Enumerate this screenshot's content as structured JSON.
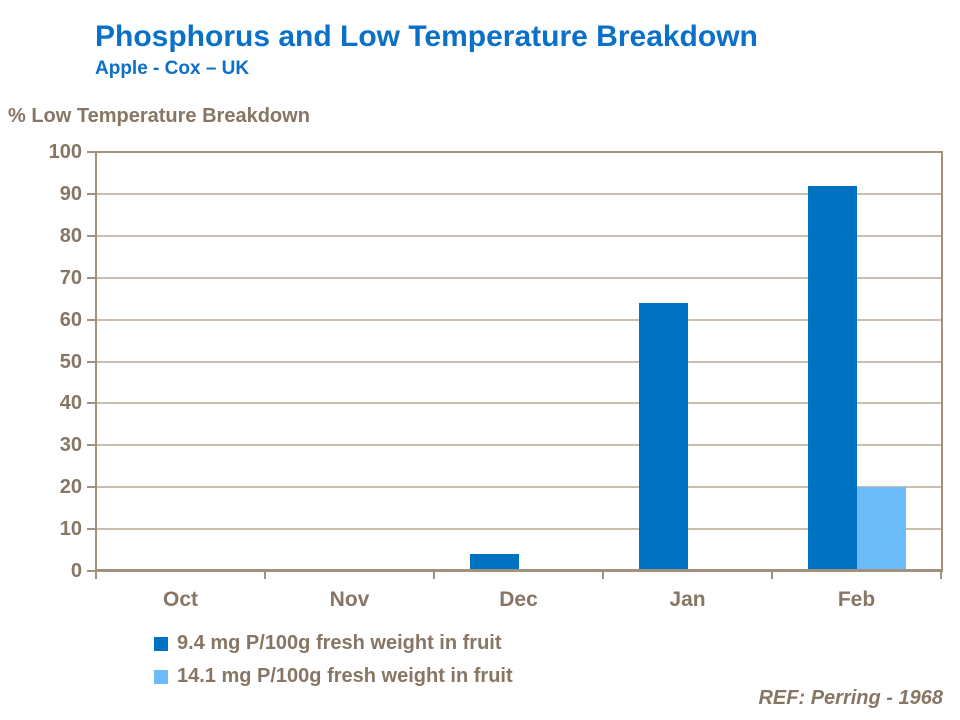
{
  "chart_data": {
    "type": "bar",
    "title": "Phosphorus and Low Temperature Breakdown",
    "subtitle": "Apple - Cox – UK",
    "axis_title": "% Low Temperature Breakdown",
    "categories": [
      "Oct",
      "Nov",
      "Dec",
      "Jan",
      "Feb"
    ],
    "series": [
      {
        "name": "9.4 mg P/100g fresh weight in fruit",
        "color": "#0072c2",
        "values": [
          0,
          0,
          4,
          64,
          92
        ]
      },
      {
        "name": "14.1 mg P/100g fresh weight in fruit",
        "color": "#6cbcfa",
        "values": [
          0,
          0,
          0,
          0,
          20
        ]
      }
    ],
    "ylim": [
      0,
      100
    ],
    "yticks": [
      0,
      10,
      20,
      30,
      40,
      50,
      60,
      70,
      80,
      90,
      100
    ],
    "grid": "horizontal",
    "legend_position": "bottom-left"
  },
  "footnote": "REF: Perring - 1968",
  "colors": {
    "title_blue": "#0a70c8",
    "text_brown": "#877663",
    "gridline": "#cabfad",
    "axis": "#a0927c",
    "background": "#ffffff"
  }
}
